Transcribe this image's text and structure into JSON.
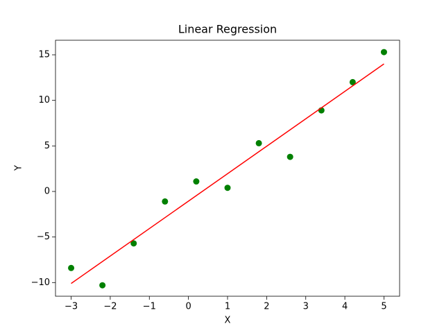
{
  "chart_data": {
    "type": "scatter",
    "title": "Linear Regression",
    "x_label": "X",
    "y_label": "Y",
    "xlim": [
      -3.4,
      5.4
    ],
    "xticks": [
      {
        "value": -3,
        "label": "−3"
      },
      {
        "value": -2,
        "label": "−2"
      },
      {
        "value": -1,
        "label": "−1"
      },
      0,
      1,
      2,
      3,
      4,
      5
    ],
    "ylim": [
      -11.5,
      16.6
    ],
    "yticks": [
      {
        "value": -10,
        "label": "−10"
      },
      {
        "value": -5,
        "label": "−5"
      },
      0,
      5,
      10,
      15
    ],
    "series": [
      {
        "type": "scatter",
        "color": "#008000",
        "x": [
          -3,
          -2.2,
          -1.4,
          -0.6,
          0.2,
          1.0,
          1.8,
          2.6,
          3.4,
          4.2,
          5.0
        ],
        "values": [
          -8.4,
          -10.3,
          -5.7,
          -1.1,
          1.1,
          0.4,
          5.3,
          3.8,
          8.9,
          12.0,
          15.3
        ]
      },
      {
        "type": "line",
        "color": "#ff0000",
        "x": [
          -3,
          5
        ],
        "values": [
          -10.1,
          14.0
        ]
      }
    ]
  }
}
